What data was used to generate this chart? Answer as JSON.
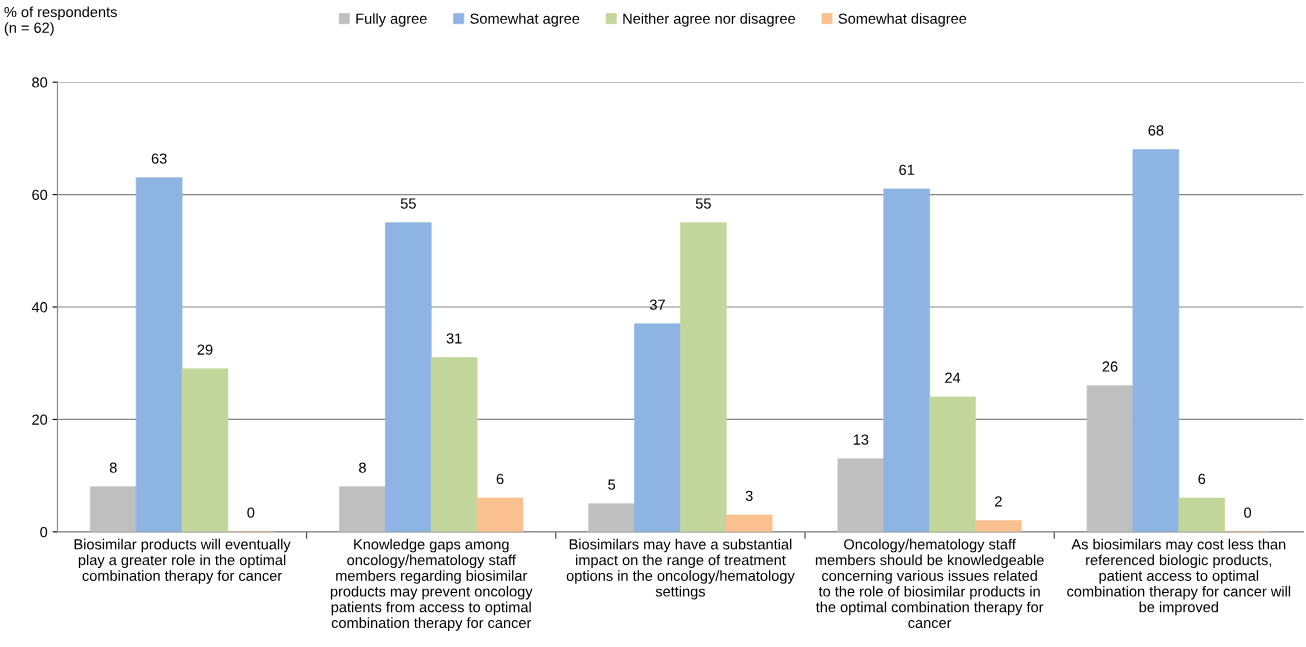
{
  "chart_data": {
    "type": "bar",
    "ylabel": "% of respondents\n(n = 62)",
    "categories": [
      "Biosimilar products will eventually\nplay a greater role in the optimal\ncombination therapy for cancer",
      "Knowledge gaps among\noncology/hematology staff\nmembers regarding biosimilar\nproducts may prevent oncology\npatients from access to optimal\ncombination therapy for cancer",
      "Biosimilars may have a substantial\nimpact on the range of treatment\noptions in the oncology/hematology\nsettings",
      "Oncology/hematology staff\nmembers should be knowledgeable\nconcerning various issues related\nto the role of biosimilar products in\nthe optimal combination therapy for\ncancer",
      "As biosimilars may cost less than\nreferenced biologic products,\npatient access to optimal\ncombination therapy for cancer will\nbe improved"
    ],
    "series": [
      {
        "name": "Fully agree",
        "color": "#bfbfbf",
        "values": [
          8,
          8,
          5,
          13,
          26
        ]
      },
      {
        "name": "Somewhat agree",
        "color": "#8eb4e3",
        "values": [
          63,
          55,
          37,
          61,
          68
        ]
      },
      {
        "name": "Neither agree nor disagree",
        "color": "#c3d69b",
        "values": [
          29,
          31,
          55,
          24,
          6
        ]
      },
      {
        "name": "Somewhat disagree",
        "color": "#fac090",
        "values": [
          0,
          6,
          3,
          2,
          0
        ]
      }
    ],
    "ylim": [
      0,
      80
    ],
    "yticks": [
      0,
      20,
      40,
      60,
      80
    ],
    "grid": "y",
    "legend": "top",
    "data_labels": true
  }
}
